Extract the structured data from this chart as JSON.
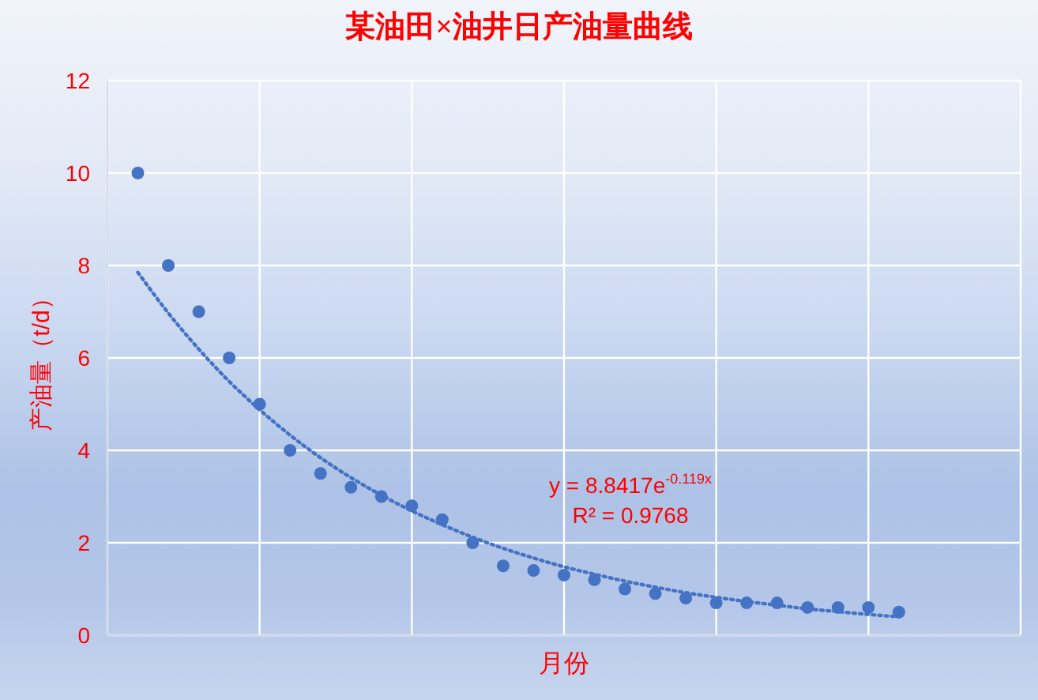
{
  "chart_data": {
    "type": "scatter",
    "title": "某油田×油井日产油量曲线",
    "xlabel": "月份",
    "ylabel": "产油量（t/d）",
    "annotations": [
      "y = 8.8417e$^{-0.119x}$",
      "R² = 0.9768"
    ],
    "categories": [
      null,
      null,
      null,
      null,
      null,
      null,
      null,
      null,
      null,
      null,
      null,
      null,
      null,
      null,
      null,
      null,
      null,
      null,
      null,
      null,
      null,
      null,
      null,
      null,
      null,
      null
    ],
    "ylim": [
      0,
      12
    ],
    "yticks": [
      0,
      2,
      4,
      6,
      8,
      10,
      12
    ],
    "grid": true,
    "tick_labels": "y",
    "series": [
      {
        "color": "#4472c4",
        "marker": "circle",
        "values": [
          10,
          8,
          7,
          6,
          5,
          4,
          3.5,
          3.2,
          3,
          2.8,
          2.5,
          2,
          1.5,
          1.4,
          1.3,
          1.2,
          1,
          0.9,
          0.8,
          0.7,
          0.7,
          0.7,
          0.6,
          0.6,
          0.6,
          0.5
        ]
      },
      {
        "type": "line",
        "color": "#4472c4",
        "marker": "none",
        "line_style": "dotted",
        "values": [
          7.85,
          6.97,
          6.19,
          5.49,
          4.88,
          4.33,
          3.84,
          3.41,
          3.03,
          2.69,
          2.39,
          2.12,
          1.88,
          1.67,
          1.48,
          1.32,
          1.17,
          1.04,
          0.92,
          0.82,
          0.73,
          0.65,
          0.57,
          0.51,
          0.45,
          0.4
        ]
      }
    ]
  }
}
